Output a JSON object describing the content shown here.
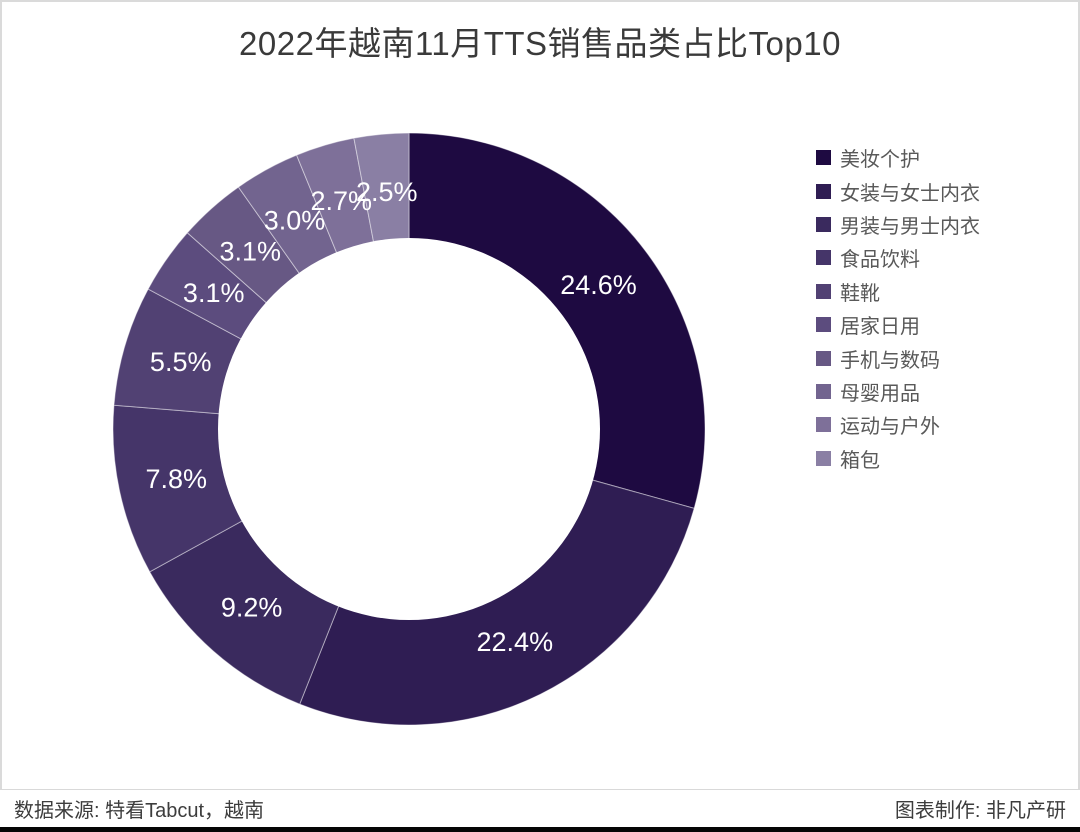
{
  "title": "2022年越南11月TTS销售品类占比Top10",
  "chart_data": {
    "type": "pie",
    "subtype": "donut",
    "title": "2022年越南11月TTS销售品类占比Top10",
    "start_angle_deg": 0,
    "direction": "clockwise",
    "legend_position": "right",
    "categories": [
      "美妆个护",
      "女装与女士内衣",
      "男装与男士内衣",
      "食品饮料",
      "鞋靴",
      "居家日用",
      "手机与数码",
      "母婴用品",
      "运动与户外",
      "箱包"
    ],
    "values": [
      24.6,
      22.4,
      9.2,
      7.8,
      5.5,
      3.1,
      3.1,
      3.0,
      2.7,
      2.5
    ],
    "labels": [
      "24.6%",
      "22.4%",
      "9.2%",
      "7.8%",
      "5.5%",
      "3.1%",
      "3.1%",
      "3.0%",
      "2.7%",
      "2.5%"
    ],
    "colors": [
      "#1e0a41",
      "#2f1d53",
      "#3a2a5e",
      "#453569",
      "#514173",
      "#5c4c7e",
      "#675884",
      "#72648f",
      "#7e7099",
      "#8a7fa4"
    ],
    "label_color": "#ffffff"
  },
  "footer": {
    "source": "数据来源: 特看Tabcut，越南",
    "credit": "图表制作: 非凡产研"
  }
}
